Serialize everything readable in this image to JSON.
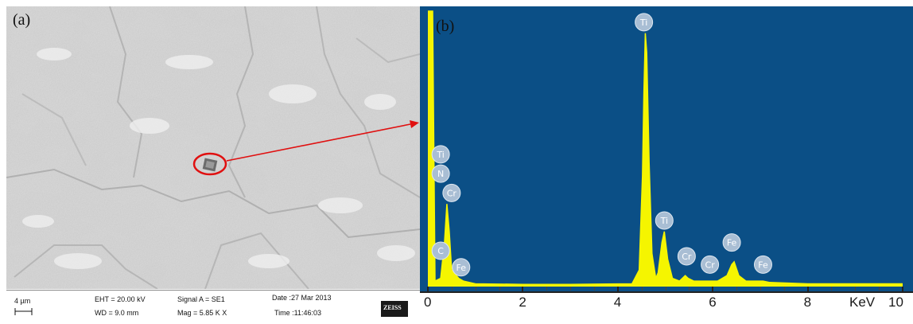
{
  "panel_a": {
    "label": "(a)",
    "info": {
      "scale": "4 µm",
      "eht": "EHT = 20.00 kV",
      "wd": "WD =  9.0 mm",
      "signal": "Signal A = SE1",
      "mag": "Mag =   5.85 K X",
      "date": "Date :27 Mar 2013",
      "time": "Time :11:46:03",
      "brand": "ZEISS"
    },
    "colors": {
      "highlight": "#e01010"
    }
  },
  "panel_b": {
    "label": "(b)"
  },
  "chart_data": {
    "type": "line",
    "title": "",
    "xlabel": "KeV",
    "ylabel": "",
    "xlim": [
      0,
      10
    ],
    "ylim": [
      0,
      100
    ],
    "xticks": [
      "0",
      "2",
      "4",
      "6",
      "8",
      "10"
    ],
    "grid": false,
    "colors": {
      "background": "#0b4f86",
      "spectrum": "#f5f500",
      "marker": "#a9bed4"
    },
    "spectrum": [
      [
        0,
        100
      ],
      [
        0.05,
        100
      ],
      [
        0.1,
        100
      ],
      [
        0.15,
        2
      ],
      [
        0.27,
        3
      ],
      [
        0.35,
        16
      ],
      [
        0.4,
        30
      ],
      [
        0.45,
        20
      ],
      [
        0.5,
        6
      ],
      [
        0.65,
        3
      ],
      [
        0.75,
        2
      ],
      [
        1.0,
        1
      ],
      [
        2.0,
        0.8
      ],
      [
        3.0,
        0.8
      ],
      [
        4.3,
        1
      ],
      [
        4.45,
        6
      ],
      [
        4.52,
        40
      ],
      [
        4.55,
        70
      ],
      [
        4.58,
        92
      ],
      [
        4.61,
        85
      ],
      [
        4.66,
        45
      ],
      [
        4.72,
        12
      ],
      [
        4.8,
        3
      ],
      [
        4.85,
        5
      ],
      [
        4.93,
        16
      ],
      [
        4.98,
        20
      ],
      [
        5.05,
        10
      ],
      [
        5.15,
        3
      ],
      [
        5.3,
        2
      ],
      [
        5.42,
        4
      ],
      [
        5.48,
        3
      ],
      [
        5.6,
        2
      ],
      [
        5.9,
        2
      ],
      [
        5.95,
        2
      ],
      [
        6.1,
        2
      ],
      [
        6.3,
        4
      ],
      [
        6.4,
        8
      ],
      [
        6.45,
        9
      ],
      [
        6.55,
        4
      ],
      [
        6.7,
        2
      ],
      [
        7.06,
        2
      ],
      [
        7.2,
        1.5
      ],
      [
        8.0,
        1
      ],
      [
        10.0,
        1
      ]
    ],
    "peaks": [
      {
        "element": "Ti",
        "energy": 4.55,
        "label_y": 96
      },
      {
        "element": "Ti",
        "energy": 4.98,
        "label_y": 24
      },
      {
        "element": "Cr",
        "energy": 5.45,
        "label_y": 11
      },
      {
        "element": "Cr",
        "energy": 5.94,
        "label_y": 8
      },
      {
        "element": "Fe",
        "energy": 6.4,
        "label_y": 16
      },
      {
        "element": "Fe",
        "energy": 7.06,
        "label_y": 8
      },
      {
        "element": "Ti",
        "energy": 0.27,
        "label_y": 48
      },
      {
        "element": "N",
        "energy": 0.27,
        "label_y": 41
      },
      {
        "element": "Cr",
        "energy": 0.5,
        "label_y": 34
      },
      {
        "element": "C",
        "energy": 0.27,
        "label_y": 13
      },
      {
        "element": "Fe",
        "energy": 0.7,
        "label_y": 7
      }
    ]
  }
}
